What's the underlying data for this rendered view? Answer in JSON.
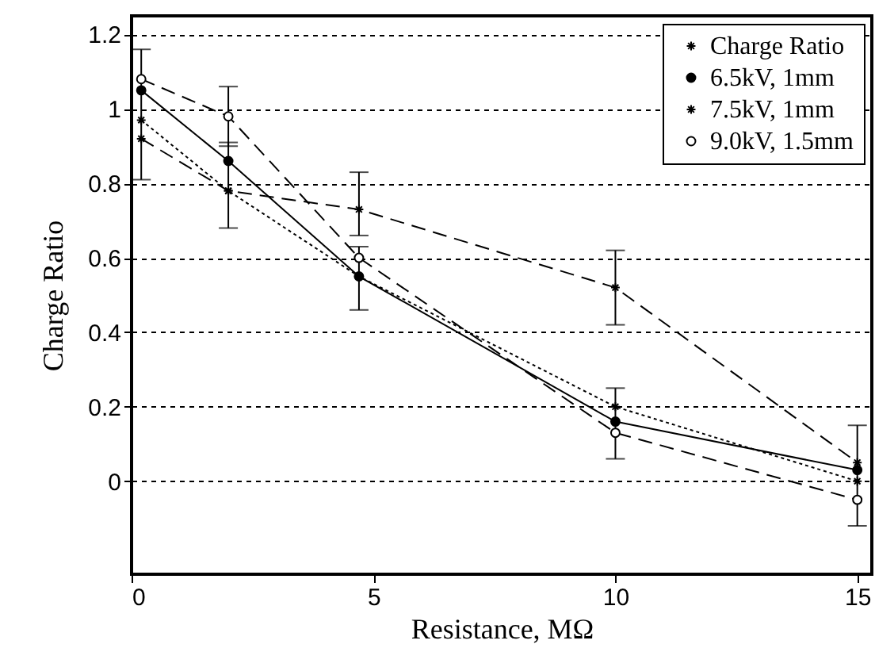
{
  "chart_data": {
    "type": "line",
    "xlabel": "Resistance, MΩ",
    "ylabel": "Charge Ratio",
    "x": [
      0.2,
      2,
      4.7,
      10,
      15
    ],
    "series": [
      {
        "name": "Charge Ratio",
        "color": "#000000",
        "marker": "cross",
        "line_style": "dotted",
        "values": [
          0.97,
          0.78,
          0.55,
          0.2,
          0.0
        ],
        "errors": [
          [
            0.81,
            1.16
          ],
          [
            0.68,
            0.91
          ],
          [
            0.46,
            0.63
          ],
          [
            0.06,
            0.25
          ],
          [
            -0.12,
            0.15
          ]
        ]
      },
      {
        "name": "6.5kV, 1mm",
        "color": "#000000",
        "marker": "circle",
        "line_style": "solid",
        "values": [
          1.05,
          0.86,
          0.55,
          0.16,
          0.03
        ]
      },
      {
        "name": "7.5kV, 1mm",
        "color": "#000000",
        "marker": "cross",
        "line_style": "dashed",
        "values": [
          0.92,
          0.78,
          0.73,
          0.52,
          0.05
        ],
        "errors": [
          null,
          null,
          [
            0.66,
            0.83
          ],
          [
            0.42,
            0.62
          ],
          null
        ]
      },
      {
        "name": "9.0kV, 1.5mm",
        "color": "#000000",
        "marker": "circle",
        "line_style": "dashed",
        "values": [
          1.08,
          0.98,
          0.6,
          0.13,
          -0.05
        ],
        "errors": [
          null,
          [
            0.9,
            1.06
          ],
          null,
          null,
          null
        ]
      }
    ],
    "xlim": [
      0,
      15.3
    ],
    "ylim": [
      -0.25,
      1.25
    ],
    "xticks": [
      0,
      5,
      10,
      15
    ],
    "yticks": [
      0,
      0.2,
      0.4,
      0.6,
      0.8,
      1,
      1.2
    ],
    "grid": "y",
    "legend": "top right"
  }
}
